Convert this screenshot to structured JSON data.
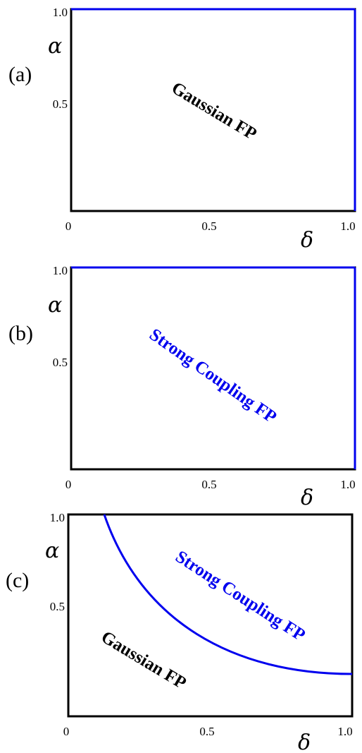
{
  "panels": [
    {
      "label": "(a)",
      "x_symbol": "δ",
      "y_symbol": "α",
      "x_ticks": [
        "0",
        "0.5",
        "1.0"
      ],
      "y_ticks": [
        "1.0",
        "0.5"
      ],
      "regions": [
        {
          "text": "Gaussian FP",
          "color": "#000000"
        }
      ],
      "blue_edges": [
        "top",
        "right"
      ],
      "boundary_curve": false
    },
    {
      "label": "(b)",
      "x_symbol": "δ",
      "y_symbol": "α",
      "x_ticks": [
        "0",
        "0.5",
        "1.0"
      ],
      "y_ticks": [
        "1.0",
        "0.5"
      ],
      "regions": [
        {
          "text": "Strong Coupling FP",
          "color": "#0000ee"
        }
      ],
      "blue_edges": [
        "top",
        "right"
      ],
      "boundary_curve": false
    },
    {
      "label": "(c)",
      "x_symbol": "δ",
      "y_symbol": "α",
      "x_ticks": [
        "0",
        "0.5",
        "1.0"
      ],
      "y_ticks": [
        "1.0",
        "0.5"
      ],
      "regions": [
        {
          "text": "Strong Coupling FP",
          "color": "#0000ee"
        },
        {
          "text": "Gaussian FP",
          "color": "#000000"
        }
      ],
      "blue_edges": [],
      "boundary_curve": true
    }
  ],
  "colors": {
    "axis": "#000000",
    "boundary": "#0000ee"
  }
}
